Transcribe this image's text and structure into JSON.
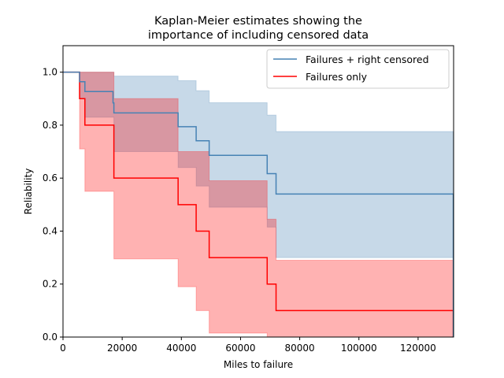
{
  "chart_data": {
    "type": "line",
    "title_lines": [
      "Kaplan-Meier estimates showing the",
      "importance of including censored data"
    ],
    "xlabel": "Miles to failure",
    "ylabel": "Reliability",
    "xlim": [
      0,
      132000
    ],
    "ylim": [
      0,
      1.1
    ],
    "x_ticks": [
      0,
      20000,
      40000,
      60000,
      80000,
      100000,
      120000
    ],
    "x_tick_labels": [
      "0",
      "20000",
      "40000",
      "60000",
      "80000",
      "100000",
      "120000"
    ],
    "y_ticks": [
      0.0,
      0.2,
      0.4,
      0.6,
      0.8,
      1.0
    ],
    "y_tick_labels": [
      "0.0",
      "0.2",
      "0.4",
      "0.6",
      "0.8",
      "1.0"
    ],
    "legend_position": "top-right",
    "grid": false,
    "series": [
      {
        "name": "Failures + right censored",
        "color": "#4682b4",
        "band_color": "#4682b4",
        "steps": [
          {
            "x": 0,
            "y": 1.0
          },
          {
            "x": 5600,
            "y": 0.964
          },
          {
            "x": 7400,
            "y": 0.927
          },
          {
            "x": 16900,
            "y": 0.884
          },
          {
            "x": 17200,
            "y": 0.846
          },
          {
            "x": 38900,
            "y": 0.794
          },
          {
            "x": 45000,
            "y": 0.741
          },
          {
            "x": 49400,
            "y": 0.686
          },
          {
            "x": 69000,
            "y": 0.617
          },
          {
            "x": 72000,
            "y": 0.54
          },
          {
            "x": 131900,
            "y": 0.0
          }
        ],
        "upper": [
          {
            "x": 5600,
            "y": 1.0
          },
          {
            "x": 17200,
            "y": 0.985
          },
          {
            "x": 38900,
            "y": 0.968
          },
          {
            "x": 45000,
            "y": 0.93
          },
          {
            "x": 49400,
            "y": 0.885
          },
          {
            "x": 69000,
            "y": 0.838
          },
          {
            "x": 72000,
            "y": 0.776
          },
          {
            "x": 131900,
            "y": 0.776
          }
        ],
        "lower": [
          {
            "x": 5600,
            "y": 0.9
          },
          {
            "x": 7400,
            "y": 0.83
          },
          {
            "x": 17200,
            "y": 0.7
          },
          {
            "x": 38900,
            "y": 0.64
          },
          {
            "x": 45000,
            "y": 0.57
          },
          {
            "x": 49400,
            "y": 0.49
          },
          {
            "x": 69000,
            "y": 0.415
          },
          {
            "x": 72000,
            "y": 0.3
          },
          {
            "x": 131900,
            "y": 0.3
          }
        ]
      },
      {
        "name": "Failures only",
        "color": "#ff0000",
        "band_color": "#ff0000",
        "steps": [
          {
            "x": 0,
            "y": 1.0
          },
          {
            "x": 5600,
            "y": 0.9
          },
          {
            "x": 7400,
            "y": 0.8
          },
          {
            "x": 17200,
            "y": 0.6
          },
          {
            "x": 38900,
            "y": 0.5
          },
          {
            "x": 45000,
            "y": 0.4
          },
          {
            "x": 49400,
            "y": 0.3
          },
          {
            "x": 69000,
            "y": 0.2
          },
          {
            "x": 72000,
            "y": 0.1
          },
          {
            "x": 131900,
            "y": 0.0
          }
        ],
        "upper": [
          {
            "x": 5600,
            "y": 1.0
          },
          {
            "x": 17200,
            "y": 0.9
          },
          {
            "x": 38900,
            "y": 0.7
          },
          {
            "x": 49400,
            "y": 0.59
          },
          {
            "x": 69000,
            "y": 0.445
          },
          {
            "x": 72000,
            "y": 0.29
          },
          {
            "x": 131900,
            "y": 0.285
          }
        ],
        "lower": [
          {
            "x": 5600,
            "y": 0.71
          },
          {
            "x": 7400,
            "y": 0.55
          },
          {
            "x": 17200,
            "y": 0.295
          },
          {
            "x": 38900,
            "y": 0.19
          },
          {
            "x": 45000,
            "y": 0.1
          },
          {
            "x": 49400,
            "y": 0.015
          },
          {
            "x": 69000,
            "y": 0.0
          },
          {
            "x": 131900,
            "y": 0.0
          }
        ]
      }
    ]
  }
}
